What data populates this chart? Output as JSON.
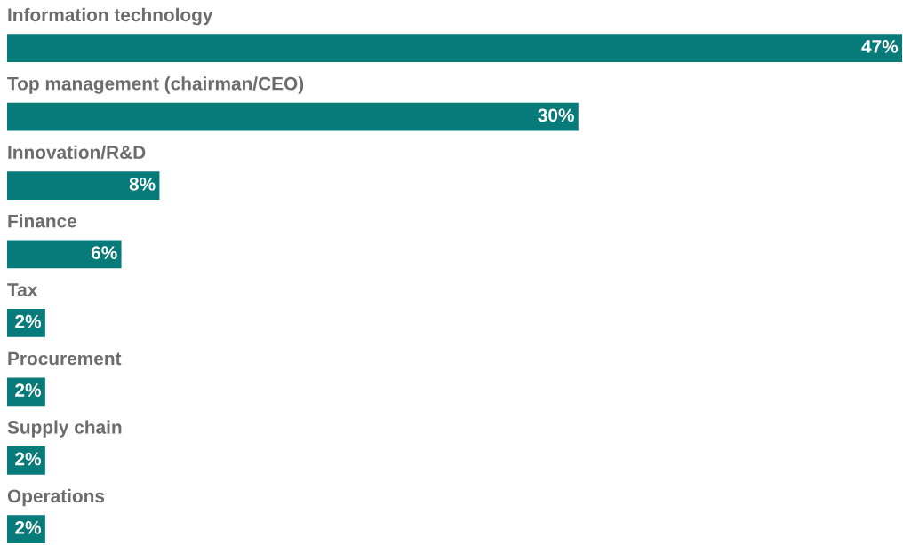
{
  "chart_data": {
    "type": "bar",
    "orientation": "horizontal",
    "categories": [
      "Information technology",
      "Top management (chairman/CEO)",
      "Innovation/R&D",
      "Finance",
      "Tax",
      "Procurement",
      "Supply chain",
      "Operations"
    ],
    "values": [
      47,
      30,
      8,
      6,
      2,
      2,
      2,
      2
    ],
    "color": "#077a7a",
    "data_labels": true,
    "value_labels": [
      "47%",
      "30%",
      "8%",
      "6%",
      "2%",
      "2%",
      "2%",
      "2%"
    ],
    "tick_labels": false
  }
}
